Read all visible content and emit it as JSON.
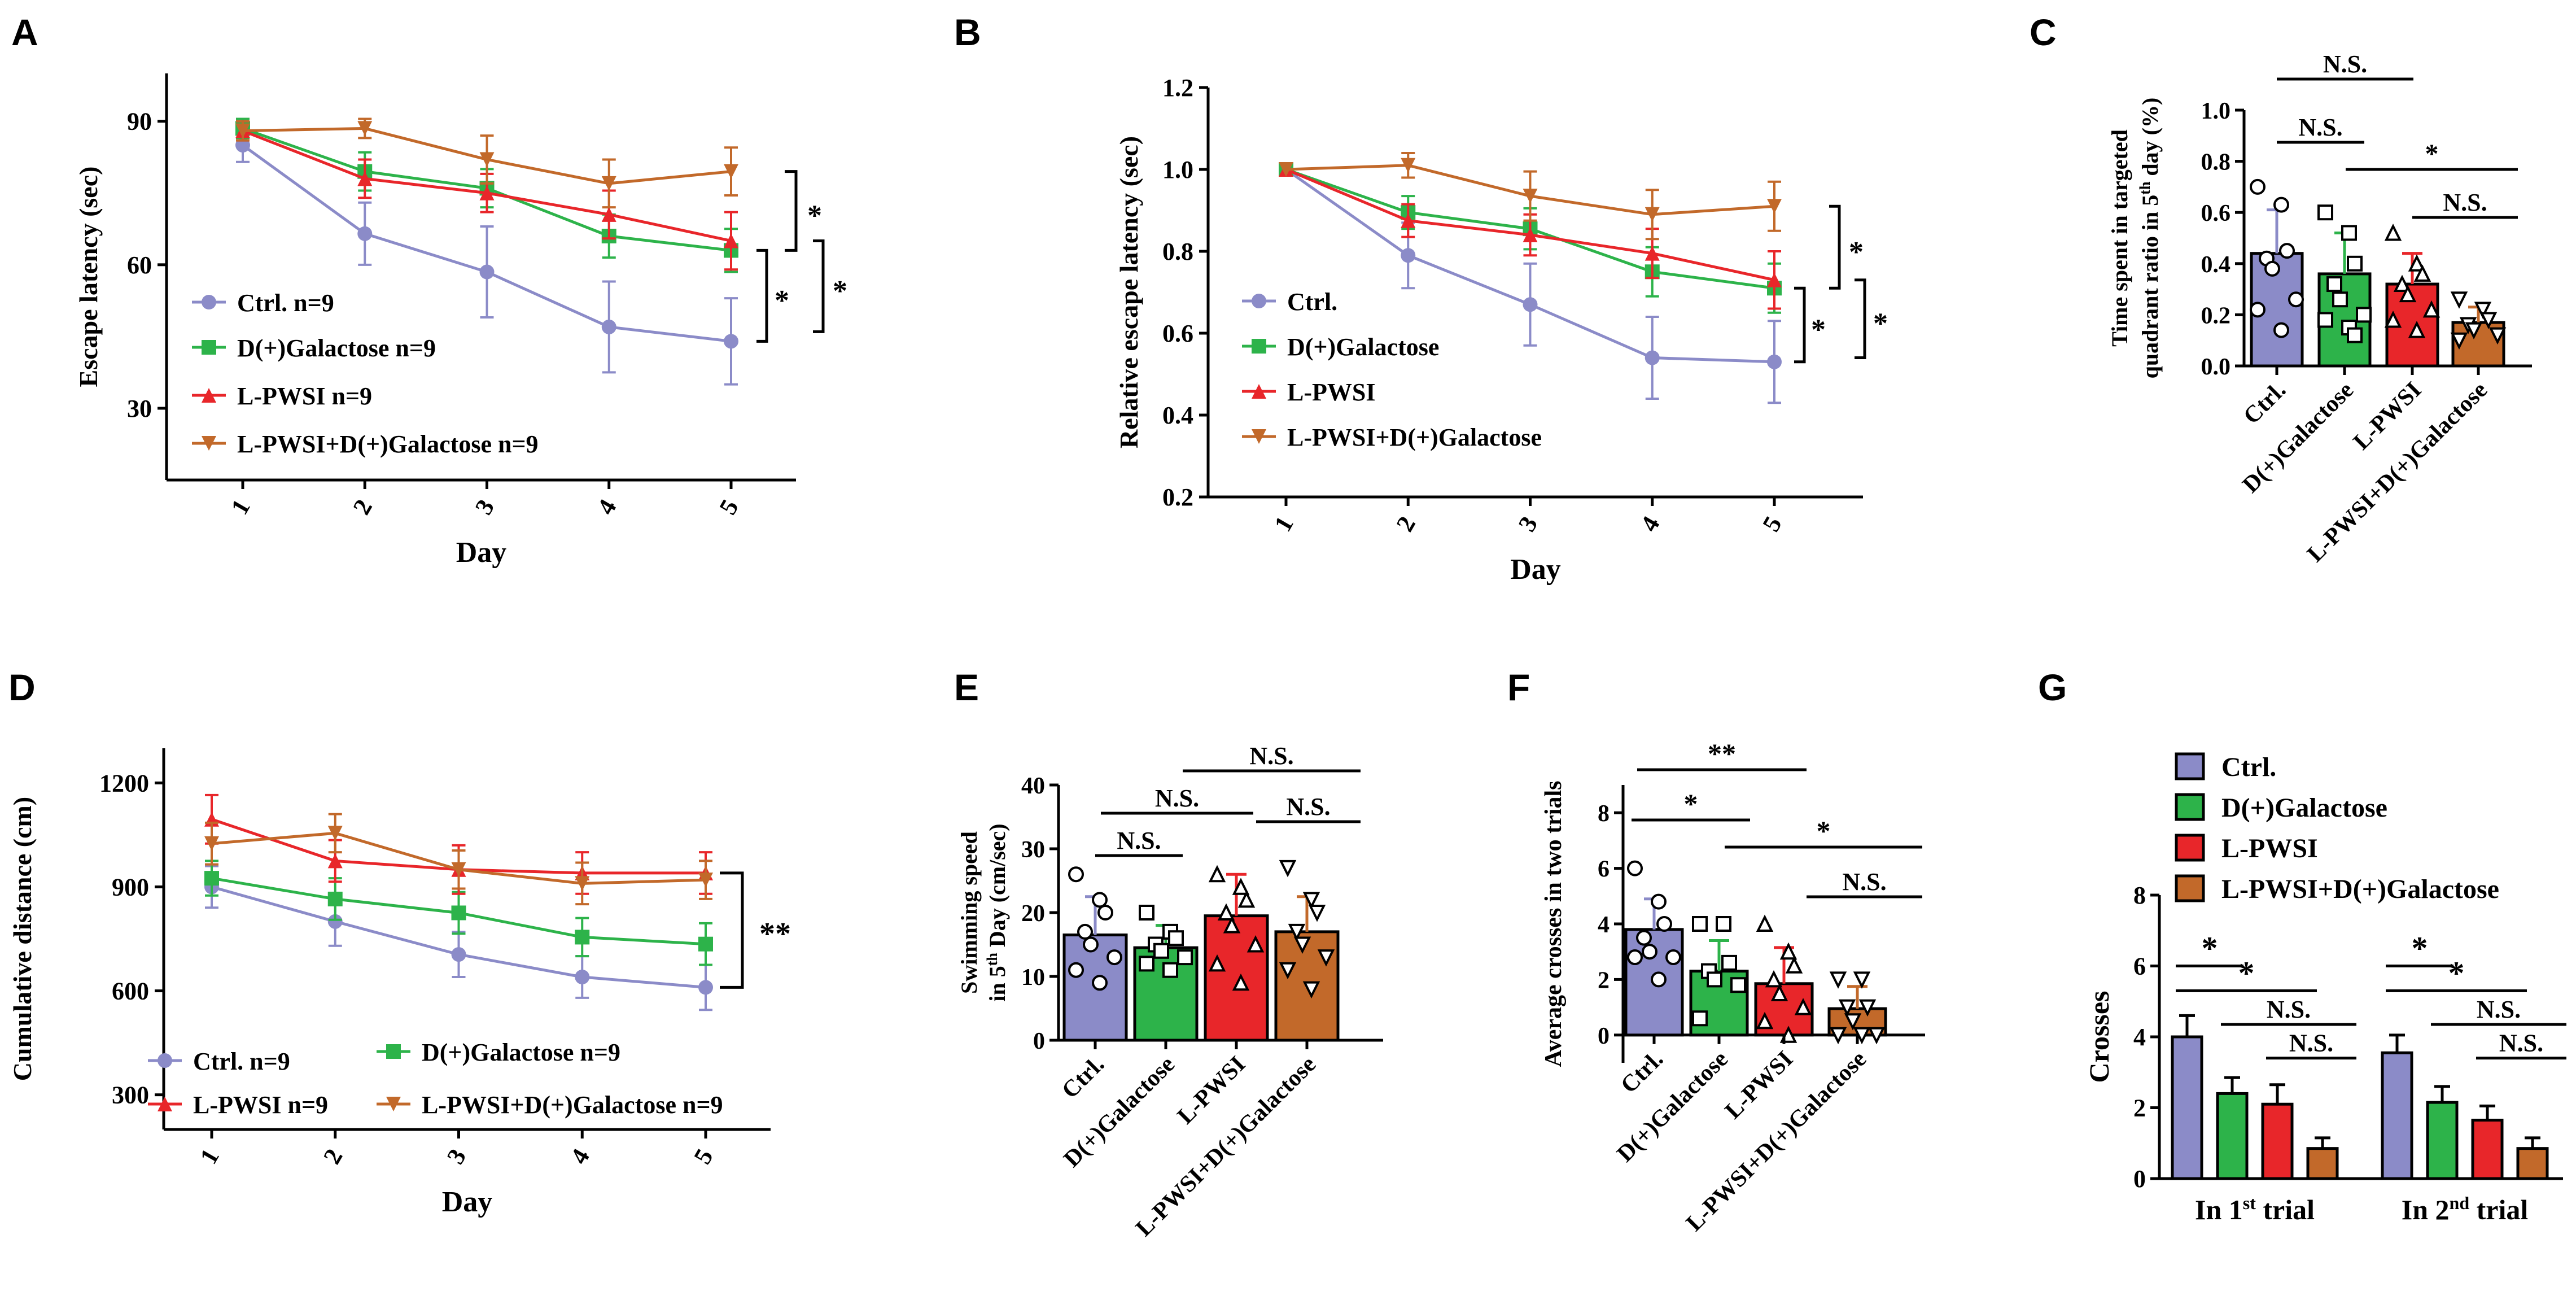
{
  "colors": {
    "ctrl": "#8B8BC8",
    "dgal": "#2DB34A",
    "lpwsi": "#E8262A",
    "combo": "#C2692A"
  },
  "chart_data": [
    {
      "panel": "A",
      "type": "line",
      "xlabel": "Day",
      "ylabel": "Escape latency (sec)",
      "categories": [
        "1",
        "2",
        "3",
        "4",
        "5"
      ],
      "ylim": [
        15,
        100
      ],
      "yticks": [
        "30",
        "60",
        "90"
      ],
      "series": [
        {
          "name": "Ctrl. n=9",
          "color": "ctrl",
          "values": [
            85,
            66.5,
            58.5,
            47,
            44
          ],
          "err": [
            3.5,
            6.5,
            9.5,
            9.5,
            9
          ]
        },
        {
          "name": "D(+)Galactose n=9",
          "color": "dgal",
          "values": [
            88.5,
            79.5,
            76,
            66,
            63
          ],
          "err": [
            2,
            4,
            4,
            4.5,
            4.5
          ]
        },
        {
          "name": "L-PWSI n=9",
          "color": "lpwsi",
          "values": [
            88,
            78,
            75,
            70.5,
            65
          ],
          "err": [
            2,
            4,
            4,
            5,
            6
          ]
        },
        {
          "name": "L-PWSI+D(+)Galactose n=9",
          "color": "combo",
          "values": [
            88,
            88.5,
            82,
            77,
            79.5
          ],
          "err": [
            2,
            2,
            5,
            5,
            5
          ]
        }
      ],
      "sig": [
        "*",
        "*",
        "*"
      ]
    },
    {
      "panel": "B",
      "type": "line",
      "xlabel": "Day",
      "ylabel": "Relative escape latency (sec)",
      "categories": [
        "1",
        "2",
        "3",
        "4",
        "5"
      ],
      "ylim": [
        0.2,
        1.2
      ],
      "yticks": [
        "0.2",
        "0.4",
        "0.6",
        "0.8",
        "1.0",
        "1.2"
      ],
      "series": [
        {
          "name": "Ctrl.",
          "color": "ctrl",
          "values": [
            1.0,
            0.79,
            0.67,
            0.54,
            0.53
          ],
          "err": [
            0,
            0.08,
            0.1,
            0.1,
            0.1
          ]
        },
        {
          "name": "D(+)Galactose",
          "color": "dgal",
          "values": [
            1.0,
            0.895,
            0.855,
            0.75,
            0.71
          ],
          "err": [
            0,
            0.04,
            0.05,
            0.06,
            0.06
          ]
        },
        {
          "name": "L-PWSI",
          "color": "lpwsi",
          "values": [
            1.0,
            0.875,
            0.84,
            0.795,
            0.73
          ],
          "err": [
            0,
            0.04,
            0.05,
            0.06,
            0.07
          ]
        },
        {
          "name": "L-PWSI+D(+)Galactose",
          "color": "combo",
          "values": [
            1.0,
            1.01,
            0.935,
            0.89,
            0.91
          ],
          "err": [
            0,
            0.03,
            0.06,
            0.06,
            0.06
          ]
        }
      ],
      "sig": [
        "*",
        "*",
        "*"
      ]
    },
    {
      "panel": "C",
      "type": "bar",
      "ylabel": "Time spent in targeted quadrant ratio in 5th day (%)",
      "ylabel_main": "Time spent in targeted",
      "ylabel_sub": "quadrant ratio in 5",
      "ylabel_sup": "th",
      "ylabel_end": " day (%)",
      "categories": [
        "Ctrl.",
        "D(+)Galactose",
        "L-PWSI",
        "L-PWSI+D(+)Galactose"
      ],
      "ylim": [
        0,
        1.0
      ],
      "yticks": [
        "0.0",
        "0.2",
        "0.4",
        "0.6",
        "0.8",
        "1.0"
      ],
      "values": [
        0.44,
        0.36,
        0.32,
        0.17
      ],
      "err": [
        0.17,
        0.16,
        0.12,
        0.06
      ],
      "points": [
        [
          0.7,
          0.63,
          0.45,
          0.42,
          0.38,
          0.26,
          0.22,
          0.14
        ],
        [
          0.6,
          0.52,
          0.4,
          0.32,
          0.26,
          0.2,
          0.18,
          0.15,
          0.12
        ],
        [
          0.52,
          0.4,
          0.36,
          0.32,
          0.28,
          0.22,
          0.18,
          0.14
        ],
        [
          0.26,
          0.22,
          0.18,
          0.16,
          0.14,
          0.12,
          0.1
        ]
      ],
      "sig": [
        "N.S.",
        "N.S.",
        "*",
        "N.S."
      ]
    },
    {
      "panel": "D",
      "type": "line",
      "xlabel": "Day",
      "ylabel": "Cumulative distance (cm)",
      "categories": [
        "1",
        "2",
        "3",
        "4",
        "5"
      ],
      "ylim": [
        200,
        1300
      ],
      "yticks": [
        "300",
        "600",
        "900",
        "1200"
      ],
      "series": [
        {
          "name": "Ctrl. n=9",
          "color": "ctrl",
          "values": [
            900,
            800,
            705,
            640,
            610
          ],
          "err": [
            60,
            70,
            65,
            60,
            65
          ]
        },
        {
          "name": "D(+)Galactose n=9",
          "color": "dgal",
          "values": [
            925,
            865,
            825,
            755,
            735
          ],
          "err": [
            50,
            60,
            60,
            55,
            60
          ]
        },
        {
          "name": "L-PWSI n=9",
          "color": "lpwsi",
          "values": [
            1095,
            975,
            950,
            940,
            940
          ],
          "err": [
            70,
            60,
            70,
            60,
            60
          ]
        },
        {
          "name": "L-PWSI+D(+)Galactose n=9",
          "color": "combo",
          "values": [
            1025,
            1055,
            950,
            910,
            920
          ],
          "err": [
            60,
            55,
            55,
            60,
            55
          ]
        }
      ],
      "sig": [
        "**"
      ]
    },
    {
      "panel": "E",
      "type": "bar",
      "ylabel_main": "Swimming speed",
      "ylabel_sub": "in 5",
      "ylabel_sup": "th",
      "ylabel_end": " Day (cm/sec)",
      "categories": [
        "Ctrl.",
        "D(+)Galactose",
        "L-PWSI",
        "L-PWSI+D(+)Galactose"
      ],
      "ylim": [
        0,
        40
      ],
      "yticks": [
        "0",
        "10",
        "20",
        "30",
        "40"
      ],
      "values": [
        16.5,
        14.5,
        19.5,
        17
      ],
      "err": [
        6,
        3.5,
        6.5,
        5.5
      ],
      "points": [
        [
          26,
          22,
          20,
          17,
          15,
          13,
          11,
          9
        ],
        [
          20,
          17,
          16,
          15,
          14,
          13,
          12,
          11
        ],
        [
          26,
          24,
          22,
          20,
          18,
          15,
          12,
          9
        ],
        [
          27,
          22,
          20,
          17,
          15,
          13,
          11,
          8
        ]
      ],
      "sig": [
        "N.S.",
        "N.S.",
        "N.S.",
        "N.S."
      ]
    },
    {
      "panel": "F",
      "type": "bar",
      "ylabel": "Average crosses in two trials",
      "categories": [
        "Ctrl.",
        "D(+)Galactose",
        "L-PWSI",
        "L-PWSI+D(+)Galactose"
      ],
      "ylim": [
        -1,
        9
      ],
      "yticks": [
        "0",
        "2",
        "4",
        "6",
        "8"
      ],
      "values": [
        3.8,
        2.3,
        1.85,
        0.95
      ],
      "err": [
        1.1,
        1.1,
        1.3,
        0.8
      ],
      "points": [
        [
          6,
          4.8,
          4,
          3.5,
          3,
          2.8,
          2.8,
          2
        ],
        [
          4,
          4,
          2.6,
          2.3,
          2,
          1.8,
          0.6
        ],
        [
          4,
          3,
          2.5,
          2,
          1.5,
          1,
          0.5,
          0
        ],
        [
          2,
          2,
          1,
          1,
          0.5,
          0,
          0,
          0
        ]
      ],
      "sig": [
        "**",
        "*",
        "*",
        "N.S."
      ]
    },
    {
      "panel": "G",
      "type": "bar",
      "ylabel": "Crosses",
      "groups": [
        "In 1",
        "In 2"
      ],
      "group_sup": [
        "st",
        "nd"
      ],
      "group_end": " trial",
      "ylim": [
        0,
        8
      ],
      "yticks": [
        "0",
        "2",
        "4",
        "6",
        "8"
      ],
      "series": [
        {
          "name": "Ctrl.",
          "color": "ctrl",
          "values": [
            4.0,
            3.55
          ],
          "err": [
            0.6,
            0.5
          ]
        },
        {
          "name": "D(+)Galactose",
          "color": "dgal",
          "values": [
            2.4,
            2.15
          ],
          "err": [
            0.45,
            0.45
          ]
        },
        {
          "name": "L-PWSI",
          "color": "lpwsi",
          "values": [
            2.1,
            1.65
          ],
          "err": [
            0.55,
            0.4
          ]
        },
        {
          "name": "L-PWSI+D(+)Galactose",
          "color": "combo",
          "values": [
            0.85,
            0.85
          ],
          "err": [
            0.3,
            0.3
          ]
        }
      ],
      "sig": [
        "*",
        "*",
        "N.S.",
        "N.S.",
        "*",
        "*",
        "N.S.",
        "N.S."
      ]
    }
  ],
  "panel_labels": [
    "A",
    "B",
    "C",
    "D",
    "E",
    "F",
    "G"
  ]
}
